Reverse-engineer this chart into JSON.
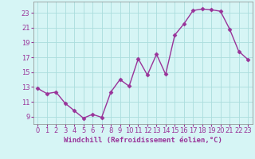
{
  "x": [
    0,
    1,
    2,
    3,
    4,
    5,
    6,
    7,
    8,
    9,
    10,
    11,
    12,
    13,
    14,
    15,
    16,
    17,
    18,
    19,
    20,
    21,
    22,
    23
  ],
  "y": [
    12.8,
    12.1,
    12.3,
    10.8,
    9.8,
    8.8,
    9.3,
    8.9,
    12.3,
    14.0,
    13.1,
    16.8,
    14.6,
    17.4,
    14.7,
    20.0,
    21.5,
    23.3,
    23.5,
    23.4,
    23.2,
    20.8,
    17.8,
    16.7
  ],
  "line_color": "#993399",
  "marker": "D",
  "marker_size": 2.5,
  "linewidth": 1.0,
  "bg_color": "#d6f5f5",
  "grid_color": "#aadddd",
  "xlabel": "Windchill (Refroidissement éolien,°C)",
  "xlabel_fontsize": 6.5,
  "ylabel_ticks": [
    9,
    11,
    13,
    15,
    17,
    19,
    21,
    23
  ],
  "xlim": [
    -0.5,
    23.5
  ],
  "ylim": [
    8.0,
    24.5
  ],
  "xtick_labels": [
    "0",
    "1",
    "2",
    "3",
    "4",
    "5",
    "6",
    "7",
    "8",
    "9",
    "10",
    "11",
    "12",
    "13",
    "14",
    "15",
    "16",
    "17",
    "18",
    "19",
    "20",
    "21",
    "22",
    "23"
  ],
  "tick_fontsize": 6.0,
  "tick_color": "#993399",
  "label_color": "#993399"
}
